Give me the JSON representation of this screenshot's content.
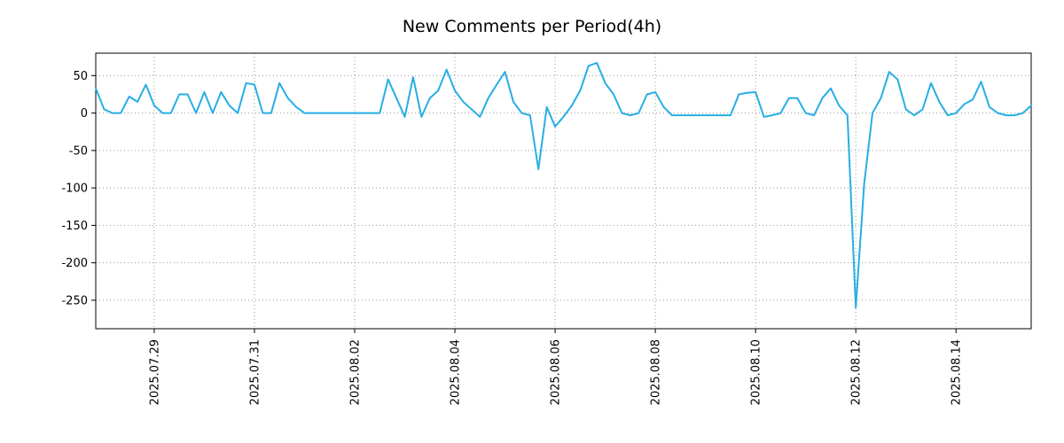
{
  "chart_data": {
    "type": "line",
    "title": "New Comments per Period(4h)",
    "xlabel": "",
    "ylabel": "",
    "grid": true,
    "series_color": "#27aee4",
    "grid_color": "#999999",
    "ylim": [
      -288,
      80
    ],
    "y_ticks": [
      50,
      0,
      -50,
      -100,
      -150,
      -200,
      -250
    ],
    "x_ticks": [
      {
        "label": "2025.07.29",
        "index": 7
      },
      {
        "label": "2025.07.31",
        "index": 19
      },
      {
        "label": "2025.08.02",
        "index": 31
      },
      {
        "label": "2025.08.04",
        "index": 43
      },
      {
        "label": "2025.08.06",
        "index": 55
      },
      {
        "label": "2025.08.08",
        "index": 67
      },
      {
        "label": "2025.08.10",
        "index": 79
      },
      {
        "label": "2025.08.12",
        "index": 91
      },
      {
        "label": "2025.08.14",
        "index": 103
      }
    ],
    "period_hours": 4,
    "values": [
      33,
      5,
      0,
      0,
      22,
      15,
      38,
      10,
      0,
      0,
      25,
      25,
      0,
      28,
      0,
      28,
      10,
      0,
      40,
      38,
      0,
      0,
      40,
      20,
      8,
      0,
      0,
      0,
      0,
      0,
      0,
      0,
      0,
      0,
      0,
      45,
      20,
      -5,
      48,
      -5,
      20,
      30,
      58,
      30,
      15,
      5,
      -5,
      20,
      38,
      55,
      15,
      0,
      -3,
      -75,
      8,
      -18,
      -5,
      10,
      30,
      63,
      67,
      40,
      25,
      0,
      -3,
      0,
      25,
      28,
      8,
      -3,
      -3,
      -3,
      -3,
      -3,
      -3,
      -3,
      -3,
      25,
      27,
      28,
      -5,
      -3,
      0,
      20,
      20,
      0,
      -3,
      20,
      33,
      10,
      -3,
      -260,
      -95,
      0,
      20,
      55,
      45,
      5,
      -3,
      5,
      40,
      15,
      -3,
      0,
      12,
      18,
      42,
      8,
      0,
      -3,
      -3,
      0,
      10
    ]
  }
}
